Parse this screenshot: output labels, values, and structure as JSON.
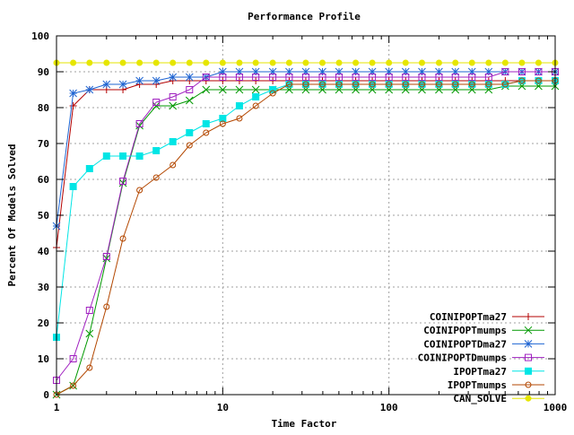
{
  "chart_data": {
    "type": "line",
    "title": "Performance Profile",
    "xlabel": "Time Factor",
    "ylabel": "Percent Of Models Solved",
    "x_scale": "log",
    "xlim": [
      1,
      1000
    ],
    "ylim": [
      0,
      100
    ],
    "x_ticks": [
      {
        "value": 1,
        "label": "1"
      },
      {
        "value": 10,
        "label": "10"
      },
      {
        "value": 100,
        "label": "100"
      },
      {
        "value": 1000,
        "label": "1000"
      }
    ],
    "y_ticks": [
      {
        "value": 0,
        "label": "0"
      },
      {
        "value": 10,
        "label": "10"
      },
      {
        "value": 20,
        "label": "20"
      },
      {
        "value": 30,
        "label": "30"
      },
      {
        "value": 40,
        "label": "40"
      },
      {
        "value": 50,
        "label": "50"
      },
      {
        "value": 60,
        "label": "60"
      },
      {
        "value": 70,
        "label": "70"
      },
      {
        "value": 80,
        "label": "80"
      },
      {
        "value": 90,
        "label": "90"
      },
      {
        "value": 100,
        "label": "100"
      }
    ],
    "grid": true,
    "legend_position": "bottom-right",
    "x": [
      1,
      1.26,
      1.58,
      2.0,
      2.51,
      3.16,
      3.98,
      5.01,
      6.31,
      7.94,
      10.0,
      12.6,
      15.8,
      20.0,
      25.1,
      31.6,
      39.8,
      50.1,
      63.1,
      79.4,
      100,
      126,
      158,
      200,
      251,
      316,
      398,
      501,
      631,
      794,
      1000
    ],
    "series": [
      {
        "name": "COINIPOPTma27",
        "color": "#b30000",
        "marker": "plus",
        "values": [
          41,
          80.5,
          85,
          85,
          85,
          86.5,
          86.5,
          87.5,
          87.5,
          87.5,
          87.5,
          87.5,
          87.5,
          87.5,
          87.5,
          87.5,
          87.5,
          87.5,
          87.5,
          87.5,
          87.5,
          87.5,
          87.5,
          87.5,
          87.5,
          87.5,
          87.5,
          87.5,
          87.5,
          87.5,
          87.5
        ]
      },
      {
        "name": "COINIPOPTmumps",
        "color": "#009900",
        "marker": "cross",
        "values": [
          0,
          2.5,
          17,
          38,
          59,
          75,
          80.5,
          80.5,
          82,
          85,
          85,
          85,
          85,
          85,
          85,
          85,
          85,
          85,
          85,
          85,
          85,
          85,
          85,
          85,
          85,
          85,
          85,
          86,
          86,
          86,
          86
        ]
      },
      {
        "name": "COINIPOPTDma27",
        "color": "#1e64d2",
        "marker": "star",
        "values": [
          47,
          84,
          85,
          86.5,
          86.5,
          87.5,
          87.5,
          88.5,
          88.5,
          88.5,
          90,
          90,
          90,
          90,
          90,
          90,
          90,
          90,
          90,
          90,
          90,
          90,
          90,
          90,
          90,
          90,
          90,
          90,
          90,
          90,
          90
        ]
      },
      {
        "name": "COINIPOPTDmumps",
        "color": "#a020c0",
        "marker": "square",
        "values": [
          4,
          10,
          23.5,
          38.5,
          59.5,
          75.5,
          81.5,
          83,
          85,
          88.5,
          88.5,
          88.5,
          88.5,
          88.5,
          88.5,
          88.5,
          88.5,
          88.5,
          88.5,
          88.5,
          88.5,
          88.5,
          88.5,
          88.5,
          88.5,
          88.5,
          88.5,
          90,
          90,
          90,
          90
        ]
      },
      {
        "name": "IPOPTma27",
        "color": "#00e5e5",
        "marker": "filled-square",
        "values": [
          16,
          58,
          63,
          66.5,
          66.5,
          66.5,
          68,
          70.5,
          73,
          75.5,
          77,
          80.5,
          83,
          85,
          86.5,
          86.5,
          86.5,
          86.5,
          86.5,
          86.5,
          86.5,
          86.5,
          86.5,
          86.5,
          86.5,
          86.5,
          86.5,
          86.5,
          87.5,
          87.5,
          87.5
        ]
      },
      {
        "name": "IPOPTmumps",
        "color": "#b34700",
        "marker": "circle",
        "values": [
          0,
          2.5,
          7.5,
          24.5,
          43.5,
          57,
          60.5,
          64,
          69.5,
          73,
          75.5,
          77,
          80.5,
          84,
          86.5,
          86.5,
          86.5,
          86.5,
          86.5,
          86.5,
          86.5,
          86.5,
          86.5,
          86.5,
          86.5,
          86.5,
          86.5,
          86.5,
          87.5,
          87.5,
          87.5
        ]
      },
      {
        "name": "CAN_SOLVE",
        "color": "#e6e600",
        "marker": "filled-circle",
        "values": [
          92.5,
          92.5,
          92.5,
          92.5,
          92.5,
          92.5,
          92.5,
          92.5,
          92.5,
          92.5,
          92.5,
          92.5,
          92.5,
          92.5,
          92.5,
          92.5,
          92.5,
          92.5,
          92.5,
          92.5,
          92.5,
          92.5,
          92.5,
          92.5,
          92.5,
          92.5,
          92.5,
          92.5,
          92.5,
          92.5,
          92.5
        ]
      }
    ]
  }
}
